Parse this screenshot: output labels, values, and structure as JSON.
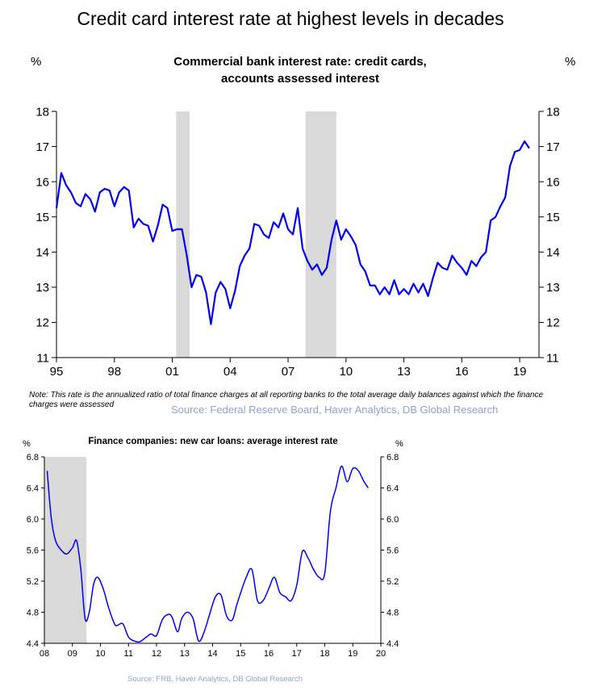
{
  "headline": "Credit card interest rate at highest levels in decades",
  "charts": [
    {
      "title_line1": "Commercial bank interest rate: credit cards,",
      "title_line2": "accounts assessed interest",
      "left_unit": "%",
      "right_unit": "%",
      "note": "Note: This rate is the annualized ratio of total finance charges at all reporting banks to the total average daily balances against which the finance charges were assessed",
      "source": "Source: Federal Reserve Board, Haver Analytics, DB Global Research"
    },
    {
      "title": "Finance companies: new car loans: average interest rate",
      "left_unit": "%",
      "right_unit": "%",
      "source": "Source: FRB, Haver Analytics, DB Global Research"
    }
  ],
  "chart_data": [
    {
      "type": "line",
      "title": "Commercial bank interest rate: credit cards, accounts assessed interest",
      "xlabel": "",
      "ylabel": "%",
      "xlim": [
        1995,
        2020.0
      ],
      "ylim": [
        11,
        18
      ],
      "x_ticks": [
        1995,
        1998,
        2001,
        2004,
        2007,
        2010,
        2013,
        2016,
        2019
      ],
      "x_tick_labels": [
        "95",
        "98",
        "01",
        "04",
        "07",
        "10",
        "13",
        "16",
        "19"
      ],
      "y_ticks": [
        11,
        12,
        13,
        14,
        15,
        16,
        17,
        18
      ],
      "shaded_periods": [
        [
          2001.2,
          2001.9
        ],
        [
          2007.9,
          2009.5
        ]
      ],
      "line_color": "#0000ee",
      "x": [
        1995.0,
        1995.25,
        1995.5,
        1995.75,
        1996.0,
        1996.25,
        1996.5,
        1996.75,
        1997.0,
        1997.25,
        1997.5,
        1997.75,
        1998.0,
        1998.25,
        1998.5,
        1998.75,
        1999.0,
        1999.25,
        1999.5,
        1999.75,
        2000.0,
        2000.25,
        2000.5,
        2000.75,
        2001.0,
        2001.25,
        2001.5,
        2001.75,
        2002.0,
        2002.25,
        2002.5,
        2002.75,
        2003.0,
        2003.25,
        2003.5,
        2003.75,
        2004.0,
        2004.25,
        2004.5,
        2004.75,
        2005.0,
        2005.25,
        2005.5,
        2005.75,
        2006.0,
        2006.25,
        2006.5,
        2006.75,
        2007.0,
        2007.25,
        2007.5,
        2007.75,
        2008.0,
        2008.25,
        2008.5,
        2008.75,
        2009.0,
        2009.25,
        2009.5,
        2009.75,
        2010.0,
        2010.25,
        2010.5,
        2010.75,
        2011.0,
        2011.25,
        2011.5,
        2011.75,
        2012.0,
        2012.25,
        2012.5,
        2012.75,
        2013.0,
        2013.25,
        2013.5,
        2013.75,
        2014.0,
        2014.25,
        2014.5,
        2014.75,
        2015.0,
        2015.25,
        2015.5,
        2015.75,
        2016.0,
        2016.25,
        2016.5,
        2016.75,
        2017.0,
        2017.25,
        2017.5,
        2017.75,
        2018.0,
        2018.25,
        2018.5,
        2018.75,
        2019.0,
        2019.25,
        2019.5
      ],
      "y": [
        15.25,
        16.25,
        15.9,
        15.7,
        15.4,
        15.3,
        15.65,
        15.5,
        15.15,
        15.7,
        15.8,
        15.75,
        15.3,
        15.7,
        15.85,
        15.75,
        14.7,
        14.95,
        14.8,
        14.75,
        14.3,
        14.75,
        15.35,
        15.25,
        14.6,
        14.65,
        14.65,
        13.9,
        13.0,
        13.35,
        13.3,
        12.85,
        11.95,
        12.85,
        13.15,
        12.95,
        12.4,
        12.9,
        13.6,
        13.9,
        14.1,
        14.8,
        14.75,
        14.5,
        14.4,
        14.85,
        14.7,
        15.1,
        14.65,
        14.5,
        15.25,
        14.1,
        13.75,
        13.5,
        13.65,
        13.35,
        13.55,
        14.35,
        14.9,
        14.35,
        14.65,
        14.45,
        14.2,
        13.65,
        13.45,
        13.05,
        13.05,
        12.8,
        13.0,
        12.8,
        13.2,
        12.8,
        12.95,
        12.8,
        13.1,
        12.85,
        13.1,
        12.75,
        13.25,
        13.7,
        13.55,
        13.5,
        13.9,
        13.7,
        13.55,
        13.35,
        13.75,
        13.6,
        13.85,
        14.0,
        14.9,
        15.0,
        15.3,
        15.55,
        16.45,
        16.85,
        16.9,
        17.15,
        16.95
      ]
    },
    {
      "type": "line",
      "title": "Finance companies: new car loans: average interest rate",
      "xlabel": "",
      "ylabel": "%",
      "xlim": [
        2008,
        2020
      ],
      "ylim": [
        4.4,
        6.8
      ],
      "x_ticks": [
        2008,
        2009,
        2010,
        2011,
        2012,
        2013,
        2014,
        2015,
        2016,
        2017,
        2018,
        2019,
        2020
      ],
      "x_tick_labels": [
        "08",
        "09",
        "10",
        "11",
        "12",
        "13",
        "14",
        "15",
        "16",
        "17",
        "18",
        "19",
        "20"
      ],
      "y_ticks": [
        4.4,
        4.8,
        5.2,
        5.6,
        6.0,
        6.4,
        6.8
      ],
      "y_tick_labels": [
        "4.4",
        "4.8",
        "5.2",
        "5.6",
        "6.0",
        "6.4",
        "6.8"
      ],
      "shaded_periods": [
        [
          2008.0,
          2009.5
        ]
      ],
      "line_color": "#0000ee",
      "x": [
        2008.1,
        2008.25,
        2008.4,
        2008.6,
        2008.8,
        2009.0,
        2009.15,
        2009.3,
        2009.45,
        2009.6,
        2009.75,
        2009.9,
        2010.1,
        2010.3,
        2010.5,
        2010.6,
        2010.8,
        2011.0,
        2011.2,
        2011.4,
        2011.6,
        2011.8,
        2012.0,
        2012.2,
        2012.4,
        2012.55,
        2012.75,
        2012.9,
        2013.1,
        2013.3,
        2013.5,
        2013.7,
        2013.9,
        2014.1,
        2014.3,
        2014.5,
        2014.7,
        2014.85,
        2015.0,
        2015.2,
        2015.4,
        2015.6,
        2015.8,
        2016.0,
        2016.2,
        2016.4,
        2016.6,
        2016.8,
        2017.0,
        2017.2,
        2017.4,
        2017.6,
        2017.8,
        2018.0,
        2018.2,
        2018.4,
        2018.6,
        2018.8,
        2019.0,
        2019.2,
        2019.4,
        2019.55
      ],
      "y": [
        6.62,
        6.0,
        5.72,
        5.6,
        5.55,
        5.63,
        5.72,
        5.35,
        4.72,
        4.8,
        5.15,
        5.25,
        5.1,
        4.85,
        4.65,
        4.63,
        4.65,
        4.48,
        4.43,
        4.42,
        4.47,
        4.52,
        4.5,
        4.7,
        4.77,
        4.74,
        4.55,
        4.72,
        4.8,
        4.72,
        4.43,
        4.55,
        4.78,
        5.0,
        5.02,
        4.75,
        4.7,
        4.88,
        5.05,
        5.25,
        5.35,
        4.95,
        4.95,
        5.1,
        5.25,
        5.05,
        5.0,
        4.95,
        5.15,
        5.58,
        5.5,
        5.35,
        5.25,
        5.3,
        6.1,
        6.4,
        6.68,
        6.48,
        6.65,
        6.62,
        6.48,
        6.4
      ]
    }
  ]
}
